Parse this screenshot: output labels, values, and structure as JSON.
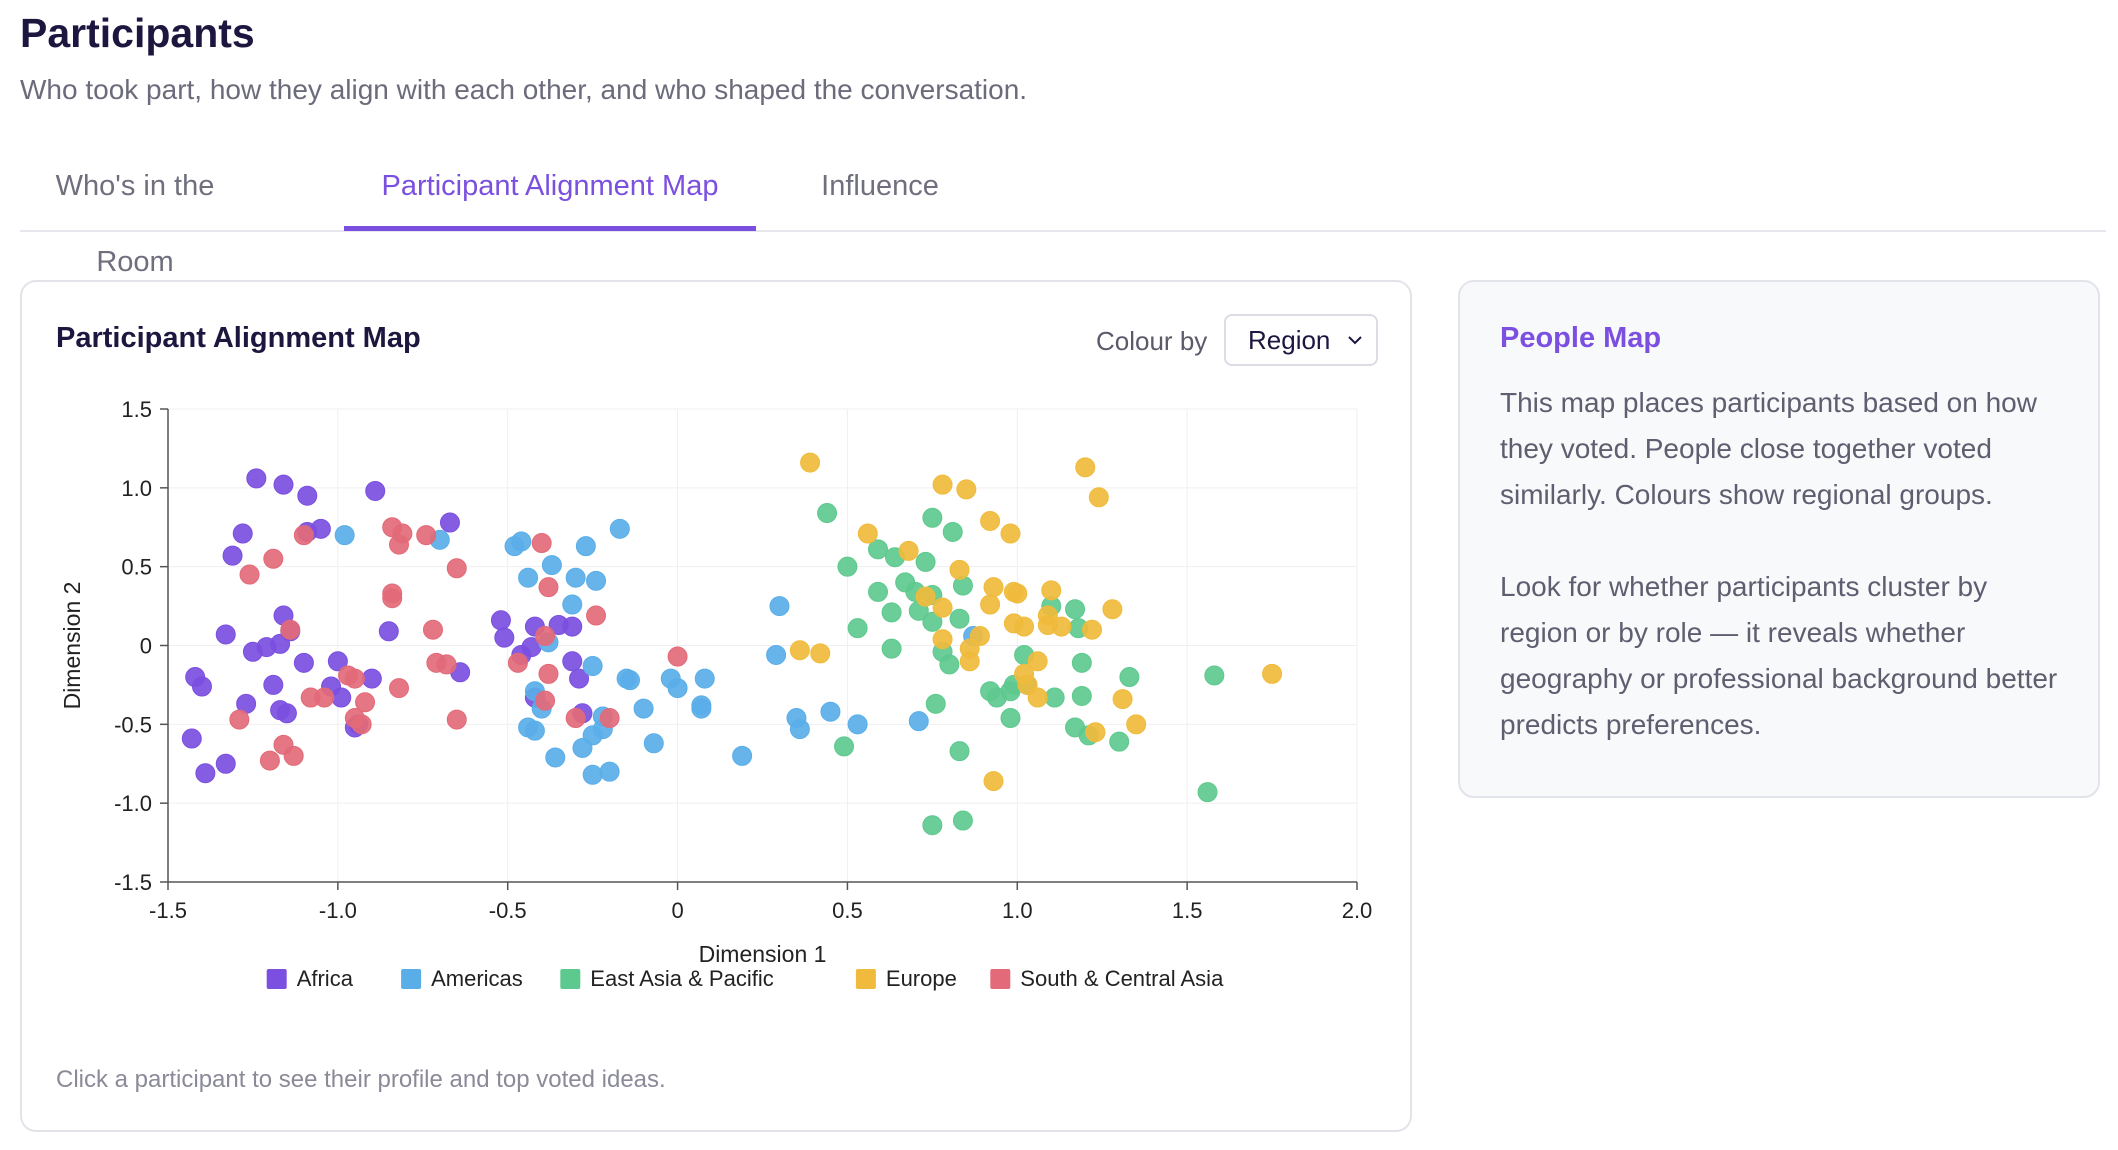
{
  "header": {
    "title": "Participants",
    "subtitle": "Who took part, how they align with each other, and who shaped the conversation."
  },
  "tabs": [
    {
      "label": "Who's in the Room",
      "active": false
    },
    {
      "label": "Participant Alignment Map",
      "active": true
    },
    {
      "label": "Influence",
      "active": false
    }
  ],
  "card": {
    "title": "Participant Alignment Map",
    "colour_by_label": "Colour by",
    "colour_by_value": "Region",
    "hint": "Click a participant to see their profile and top voted ideas."
  },
  "side": {
    "title": "People Map",
    "p1": "This map places participants based on how they voted. People close together voted similarly. Colours show regional groups.",
    "p2": "Look for whether participants cluster by region or by role — it reveals whether geography or professional background better predicts preferences."
  },
  "colors": {
    "accent": "#7b4fe0",
    "Africa": "#7b4fe0",
    "Americas": "#5aaee8",
    "East Asia & Pacific": "#5ec98e",
    "Europe": "#f0bb3c",
    "South & Central Asia": "#e36a78"
  },
  "chart_data": {
    "type": "scatter",
    "xlabel": "Dimension 1",
    "ylabel": "Dimension 2",
    "xlim": [
      -1.5,
      2.0
    ],
    "ylim": [
      -1.5,
      1.5
    ],
    "xticks": [
      "-1.5",
      "-1.0",
      "-0.5",
      "0",
      "0.5",
      "1.0",
      "1.5",
      "2.0"
    ],
    "yticks": [
      "1.5",
      "1.0",
      "0.5",
      "0",
      "-0.5",
      "-1.0",
      "-1.5"
    ],
    "grid": true,
    "legend_position": "bottom",
    "series": [
      {
        "name": "Africa",
        "points": [
          [
            -1.24,
            1.06
          ],
          [
            -1.16,
            1.02
          ],
          [
            -1.09,
            0.95
          ],
          [
            -0.89,
            0.98
          ],
          [
            -1.28,
            0.71
          ],
          [
            -1.31,
            0.57
          ],
          [
            -1.09,
            0.72
          ],
          [
            -1.05,
            0.74
          ],
          [
            -0.67,
            0.78
          ],
          [
            -1.16,
            0.19
          ],
          [
            -1.33,
            0.07
          ],
          [
            -1.14,
            0.09
          ],
          [
            -0.85,
            0.09
          ],
          [
            -1.25,
            -0.04
          ],
          [
            -1.21,
            -0.01
          ],
          [
            -1.17,
            0.01
          ],
          [
            -1.1,
            -0.11
          ],
          [
            -1.42,
            -0.2
          ],
          [
            -1.4,
            -0.26
          ],
          [
            -1.19,
            -0.25
          ],
          [
            -1.27,
            -0.37
          ],
          [
            -1.17,
            -0.41
          ],
          [
            -1.15,
            -0.43
          ],
          [
            -1.0,
            -0.1
          ],
          [
            -1.02,
            -0.26
          ],
          [
            -0.99,
            -0.33
          ],
          [
            -0.9,
            -0.21
          ],
          [
            -0.95,
            -0.52
          ],
          [
            -0.94,
            -0.5
          ],
          [
            -1.43,
            -0.59
          ],
          [
            -1.39,
            -0.81
          ],
          [
            -1.33,
            -0.75
          ],
          [
            -0.64,
            -0.17
          ],
          [
            -0.52,
            0.16
          ],
          [
            -0.51,
            0.05
          ],
          [
            -0.42,
            0.12
          ],
          [
            -0.35,
            0.13
          ],
          [
            -0.31,
            0.12
          ],
          [
            -0.43,
            -0.01
          ],
          [
            -0.46,
            -0.06
          ],
          [
            -0.31,
            -0.1
          ],
          [
            -0.29,
            -0.21
          ],
          [
            -0.42,
            -0.33
          ],
          [
            -0.28,
            -0.43
          ]
        ]
      },
      {
        "name": "Americas",
        "points": [
          [
            -0.98,
            0.7
          ],
          [
            -0.7,
            0.67
          ],
          [
            -0.48,
            0.63
          ],
          [
            -0.46,
            0.66
          ],
          [
            -0.37,
            0.51
          ],
          [
            -0.27,
            0.63
          ],
          [
            -0.17,
            0.74
          ],
          [
            -0.44,
            0.43
          ],
          [
            -0.3,
            0.43
          ],
          [
            -0.24,
            0.41
          ],
          [
            -0.31,
            0.26
          ],
          [
            -0.38,
            0.02
          ],
          [
            -0.42,
            -0.29
          ],
          [
            -0.4,
            -0.4
          ],
          [
            -0.25,
            -0.13
          ],
          [
            -0.15,
            -0.21
          ],
          [
            -0.14,
            -0.22
          ],
          [
            -0.02,
            -0.21
          ],
          [
            0.0,
            -0.27
          ],
          [
            0.08,
            -0.21
          ],
          [
            -0.44,
            -0.52
          ],
          [
            -0.42,
            -0.54
          ],
          [
            -0.22,
            -0.45
          ],
          [
            -0.22,
            -0.53
          ],
          [
            -0.1,
            -0.4
          ],
          [
            0.07,
            -0.38
          ],
          [
            0.07,
            -0.4
          ],
          [
            -0.25,
            -0.57
          ],
          [
            -0.28,
            -0.65
          ],
          [
            -0.36,
            -0.71
          ],
          [
            -0.25,
            -0.82
          ],
          [
            -0.2,
            -0.8
          ],
          [
            -0.07,
            -0.62
          ],
          [
            0.19,
            -0.7
          ],
          [
            0.3,
            0.25
          ],
          [
            0.29,
            -0.06
          ],
          [
            0.35,
            -0.46
          ],
          [
            0.36,
            -0.53
          ],
          [
            0.45,
            -0.42
          ],
          [
            0.53,
            -0.5
          ],
          [
            0.71,
            -0.48
          ],
          [
            0.87,
            0.06
          ]
        ]
      },
      {
        "name": "East Asia & Pacific",
        "points": [
          [
            0.44,
            0.84
          ],
          [
            0.5,
            0.5
          ],
          [
            0.59,
            0.61
          ],
          [
            0.75,
            0.81
          ],
          [
            0.81,
            0.72
          ],
          [
            0.64,
            0.56
          ],
          [
            0.73,
            0.53
          ],
          [
            0.59,
            0.34
          ],
          [
            0.67,
            0.4
          ],
          [
            0.7,
            0.34
          ],
          [
            0.84,
            0.38
          ],
          [
            0.75,
            0.32
          ],
          [
            0.63,
            0.21
          ],
          [
            0.71,
            0.22
          ],
          [
            0.75,
            0.15
          ],
          [
            0.53,
            0.11
          ],
          [
            0.83,
            0.17
          ],
          [
            0.63,
            -0.02
          ],
          [
            0.78,
            -0.04
          ],
          [
            0.8,
            -0.12
          ],
          [
            0.76,
            -0.37
          ],
          [
            0.83,
            -0.67
          ],
          [
            0.49,
            -0.64
          ],
          [
            1.02,
            -0.06
          ],
          [
            1.1,
            0.25
          ],
          [
            1.17,
            0.23
          ],
          [
            1.18,
            0.11
          ],
          [
            1.19,
            -0.11
          ],
          [
            0.92,
            -0.29
          ],
          [
            0.94,
            -0.33
          ],
          [
            0.99,
            -0.25
          ],
          [
            1.03,
            -0.25
          ],
          [
            0.98,
            -0.29
          ],
          [
            0.98,
            -0.46
          ],
          [
            1.11,
            -0.33
          ],
          [
            1.19,
            -0.32
          ],
          [
            1.17,
            -0.52
          ],
          [
            1.21,
            -0.57
          ],
          [
            1.3,
            -0.61
          ],
          [
            1.33,
            -0.2
          ],
          [
            1.58,
            -0.19
          ],
          [
            1.56,
            -0.93
          ],
          [
            0.75,
            -1.14
          ],
          [
            0.84,
            -1.11
          ]
        ]
      },
      {
        "name": "Europe",
        "points": [
          [
            0.39,
            1.16
          ],
          [
            0.78,
            1.02
          ],
          [
            0.85,
            0.99
          ],
          [
            1.2,
            1.13
          ],
          [
            1.24,
            0.94
          ],
          [
            0.56,
            0.71
          ],
          [
            0.68,
            0.6
          ],
          [
            0.92,
            0.79
          ],
          [
            0.98,
            0.71
          ],
          [
            0.83,
            0.48
          ],
          [
            0.93,
            0.37
          ],
          [
            0.99,
            0.34
          ],
          [
            1.0,
            0.33
          ],
          [
            0.73,
            0.31
          ],
          [
            0.78,
            0.24
          ],
          [
            0.92,
            0.26
          ],
          [
            0.99,
            0.14
          ],
          [
            1.02,
            0.12
          ],
          [
            1.09,
            0.13
          ],
          [
            1.1,
            0.35
          ],
          [
            1.13,
            0.12
          ],
          [
            1.22,
            0.1
          ],
          [
            1.28,
            0.23
          ],
          [
            1.09,
            0.19
          ],
          [
            0.78,
            0.04
          ],
          [
            0.89,
            0.06
          ],
          [
            0.36,
            -0.03
          ],
          [
            0.42,
            -0.05
          ],
          [
            0.86,
            -0.02
          ],
          [
            0.86,
            -0.1
          ],
          [
            1.06,
            -0.1
          ],
          [
            1.02,
            -0.18
          ],
          [
            1.03,
            -0.25
          ],
          [
            1.06,
            -0.33
          ],
          [
            1.23,
            -0.55
          ],
          [
            1.31,
            -0.34
          ],
          [
            1.35,
            -0.5
          ],
          [
            1.75,
            -0.18
          ],
          [
            0.93,
            -0.86
          ]
        ]
      },
      {
        "name": "South & Central Asia",
        "points": [
          [
            -1.26,
            0.45
          ],
          [
            -1.19,
            0.55
          ],
          [
            -1.1,
            0.7
          ],
          [
            -0.84,
            0.75
          ],
          [
            -0.81,
            0.71
          ],
          [
            -0.82,
            0.64
          ],
          [
            -0.74,
            0.7
          ],
          [
            -0.65,
            0.49
          ],
          [
            -0.84,
            0.33
          ],
          [
            -0.84,
            0.3
          ],
          [
            -0.4,
            0.65
          ],
          [
            -0.38,
            0.37
          ],
          [
            -0.24,
            0.19
          ],
          [
            -0.72,
            0.1
          ],
          [
            -1.14,
            0.1
          ],
          [
            -0.71,
            -0.11
          ],
          [
            -0.68,
            -0.12
          ],
          [
            -0.82,
            -0.27
          ],
          [
            -0.97,
            -0.19
          ],
          [
            -0.95,
            -0.21
          ],
          [
            -0.92,
            -0.36
          ],
          [
            -1.08,
            -0.33
          ],
          [
            -1.04,
            -0.33
          ],
          [
            -0.95,
            -0.46
          ],
          [
            -0.93,
            -0.5
          ],
          [
            -1.29,
            -0.47
          ],
          [
            -1.16,
            -0.63
          ],
          [
            -1.13,
            -0.7
          ],
          [
            -1.2,
            -0.73
          ],
          [
            -0.65,
            -0.47
          ],
          [
            -0.47,
            -0.11
          ],
          [
            -0.38,
            -0.18
          ],
          [
            -0.39,
            0.06
          ],
          [
            -0.3,
            -0.46
          ],
          [
            -0.2,
            -0.46
          ],
          [
            -0.39,
            -0.35
          ],
          [
            0.0,
            -0.07
          ]
        ]
      }
    ]
  }
}
